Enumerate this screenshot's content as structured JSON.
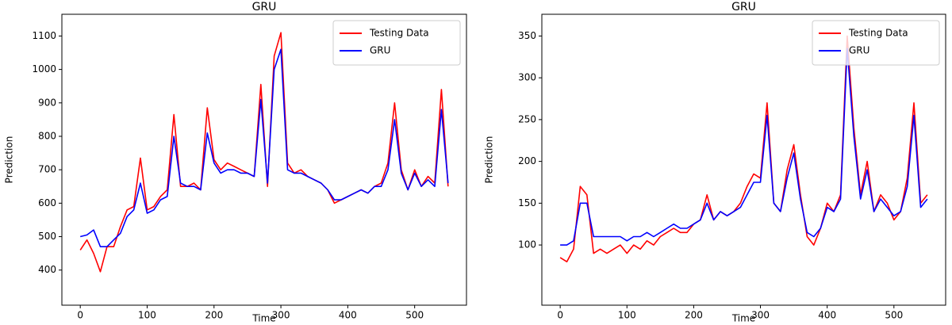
{
  "chart_data": [
    {
      "type": "line",
      "title": "GRU",
      "x_label": "Time",
      "y_label": "Prediction",
      "x": [
        0,
        10,
        20,
        30,
        40,
        50,
        60,
        70,
        80,
        90,
        100,
        110,
        120,
        130,
        140,
        150,
        160,
        170,
        180,
        190,
        200,
        210,
        220,
        230,
        240,
        250,
        260,
        270,
        280,
        290,
        300,
        310,
        320,
        330,
        340,
        350,
        360,
        370,
        380,
        390,
        400,
        410,
        420,
        430,
        440,
        450,
        460,
        470,
        480,
        490,
        500,
        510,
        520,
        530,
        540,
        550
      ],
      "series": [
        {
          "name": "Testing Data",
          "color": "#ff0000",
          "values": [
            460,
            490,
            450,
            395,
            470,
            470,
            530,
            580,
            590,
            735,
            580,
            590,
            620,
            640,
            865,
            650,
            650,
            660,
            640,
            885,
            730,
            700,
            720,
            710,
            700,
            690,
            680,
            955,
            650,
            1040,
            1110,
            720,
            690,
            700,
            680,
            670,
            660,
            640,
            600,
            610,
            620,
            630,
            640,
            630,
            650,
            660,
            720,
            900,
            700,
            640,
            700,
            650,
            680,
            660,
            940,
            650
          ]
        },
        {
          "name": "GRU",
          "color": "#0000ff",
          "values": [
            500,
            505,
            520,
            470,
            470,
            490,
            510,
            560,
            580,
            660,
            570,
            580,
            610,
            620,
            800,
            660,
            650,
            650,
            640,
            810,
            720,
            690,
            700,
            700,
            690,
            690,
            680,
            910,
            660,
            1000,
            1060,
            700,
            690,
            690,
            680,
            670,
            660,
            640,
            610,
            610,
            620,
            630,
            640,
            630,
            650,
            650,
            700,
            850,
            690,
            640,
            690,
            650,
            670,
            650,
            880,
            660
          ]
        }
      ],
      "xlim": [
        -27.5,
        577.5
      ],
      "xticks": [
        0,
        100,
        200,
        300,
        400,
        500
      ],
      "ylim": [
        295,
        1165
      ],
      "yticks": [
        400,
        500,
        600,
        700,
        800,
        900,
        1000,
        1100
      ],
      "legend": "upper right"
    },
    {
      "type": "line",
      "title": "GRU",
      "x_label": "Time",
      "y_label": "Prediction",
      "x": [
        0,
        10,
        20,
        30,
        40,
        50,
        60,
        70,
        80,
        90,
        100,
        110,
        120,
        130,
        140,
        150,
        160,
        170,
        180,
        190,
        200,
        210,
        220,
        230,
        240,
        250,
        260,
        270,
        280,
        290,
        300,
        310,
        320,
        330,
        340,
        350,
        360,
        370,
        380,
        390,
        400,
        410,
        420,
        430,
        440,
        450,
        460,
        470,
        480,
        490,
        500,
        510,
        520,
        530,
        540,
        550
      ],
      "series": [
        {
          "name": "Testing Data",
          "color": "#ff0000",
          "values": [
            85,
            80,
            95,
            170,
            160,
            90,
            95,
            90,
            95,
            100,
            90,
            100,
            95,
            105,
            100,
            110,
            115,
            120,
            115,
            115,
            125,
            130,
            160,
            130,
            140,
            135,
            140,
            150,
            170,
            185,
            180,
            270,
            150,
            140,
            190,
            220,
            160,
            110,
            100,
            120,
            150,
            140,
            160,
            350,
            240,
            160,
            200,
            140,
            160,
            150,
            130,
            140,
            180,
            270,
            150,
            160
          ]
        },
        {
          "name": "GRU",
          "color": "#0000ff",
          "values": [
            100,
            100,
            105,
            150,
            150,
            110,
            110,
            110,
            110,
            110,
            105,
            110,
            110,
            115,
            110,
            115,
            120,
            125,
            120,
            120,
            125,
            130,
            150,
            130,
            140,
            135,
            140,
            145,
            160,
            175,
            175,
            255,
            150,
            140,
            180,
            210,
            155,
            115,
            110,
            120,
            145,
            140,
            155,
            335,
            230,
            155,
            190,
            140,
            155,
            145,
            135,
            140,
            170,
            255,
            145,
            155
          ]
        }
      ],
      "xlim": [
        -27.5,
        577.5
      ],
      "xticks": [
        0,
        100,
        200,
        300,
        400,
        500
      ],
      "ylim": [
        28,
        376
      ],
      "yticks": [
        100,
        150,
        200,
        250,
        300,
        350
      ],
      "legend": "upper right"
    }
  ]
}
